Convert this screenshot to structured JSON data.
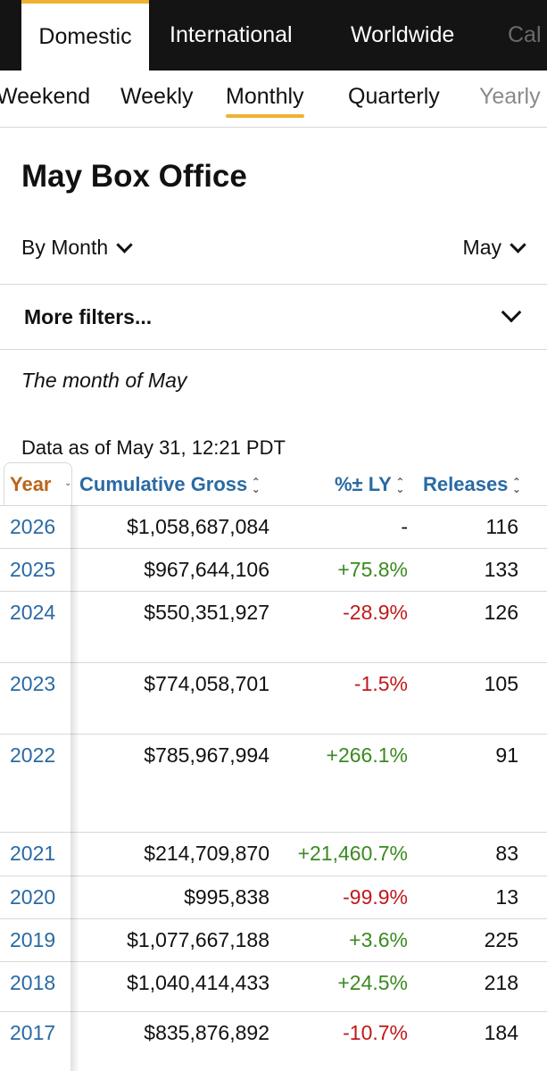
{
  "region_tabs": [
    "Domestic",
    "International",
    "Worldwide",
    "Cal"
  ],
  "period_tabs": [
    "Weekend",
    "Weekly",
    "Monthly",
    "Quarterly",
    "Yearly"
  ],
  "page_title": "May Box Office",
  "selectors": {
    "by": "By Month",
    "month": "May"
  },
  "filters_label": "More filters...",
  "subtitle": "The month of May",
  "as_of": "Data as of May 31, 12:21 PDT",
  "table": {
    "headers": {
      "year": "Year",
      "gross": "Cumulative Gross",
      "pct": "%± LY",
      "releases": "Releases"
    },
    "rows": [
      {
        "year": "2026",
        "gross": "$1,058,687,084",
        "pct": "-",
        "releases": "116",
        "trend": "neu"
      },
      {
        "year": "2025",
        "gross": "$967,644,106",
        "pct": "+75.8%",
        "releases": "133",
        "trend": "pos"
      },
      {
        "year": "2024",
        "gross": "$550,351,927",
        "pct": "-28.9%",
        "releases": "126",
        "trend": "neg"
      },
      {
        "year": "2023",
        "gross": "$774,058,701",
        "pct": "-1.5%",
        "releases": "105",
        "trend": "neg"
      },
      {
        "year": "2022",
        "gross": "$785,967,994",
        "pct": "+266.1%",
        "releases": "91",
        "trend": "pos"
      },
      {
        "year": "2021",
        "gross": "$214,709,870",
        "pct": "+21,460.7%",
        "releases": "83",
        "trend": "pos"
      },
      {
        "year": "2020",
        "gross": "$995,838",
        "pct": "-99.9%",
        "releases": "13",
        "trend": "neg"
      },
      {
        "year": "2019",
        "gross": "$1,077,667,188",
        "pct": "+3.6%",
        "releases": "225",
        "trend": "pos"
      },
      {
        "year": "2018",
        "gross": "$1,040,414,433",
        "pct": "+24.5%",
        "releases": "218",
        "trend": "pos"
      },
      {
        "year": "2017",
        "gross": "$835,876,892",
        "pct": "-10.7%",
        "releases": "184",
        "trend": "neg"
      }
    ]
  },
  "colors": {
    "accent": "#f0b133",
    "link": "#2a6aa3",
    "positive": "#3a8a1f",
    "negative": "#c0191c",
    "year_header": "#b8651b"
  }
}
